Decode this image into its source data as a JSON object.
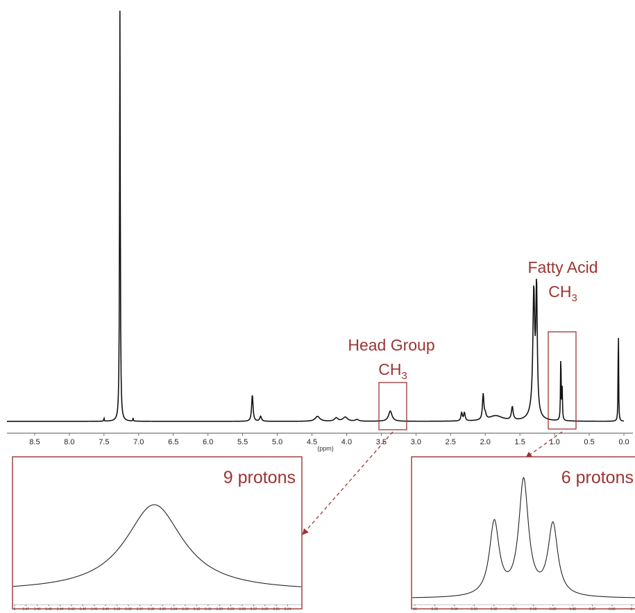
{
  "colors": {
    "spectrum": "#111111",
    "annotation": "#9b3432",
    "axis": "#555555"
  },
  "annotations": {
    "head_group_line1": "Head Group",
    "head_group_line2": "CH",
    "head_group_sub": "3",
    "fatty_acid_line1": "Fatty Acid",
    "fatty_acid_line2": "CH",
    "fatty_acid_sub": "3",
    "inset_left_label": "9 protons",
    "inset_right_label": "6 protons"
  },
  "chart_data": [
    {
      "type": "line",
      "xlabel": "(ppm)",
      "ylabel": "",
      "xlim": [
        8.9,
        0.0
      ],
      "x_reversed": true,
      "ticks": [
        "8.5",
        "8.0",
        "7.5",
        "7.0",
        "6.5",
        "6.0",
        "5.5",
        "5.0",
        "4.5",
        "4.0",
        "3.5",
        "3.0",
        "2.5",
        "2.0",
        "1.5",
        "1.0",
        "0.5",
        "0.0"
      ],
      "peaks": [
        {
          "ppm": 7.5,
          "height": 0.008,
          "width": 0.004
        },
        {
          "ppm": 7.27,
          "height": 1.0,
          "width": 0.006
        },
        {
          "ppm": 7.08,
          "height": 0.008,
          "width": 0.004
        },
        {
          "ppm": 5.36,
          "height": 0.065,
          "width": 0.012
        },
        {
          "ppm": 5.24,
          "height": 0.012,
          "width": 0.015
        },
        {
          "ppm": 4.42,
          "height": 0.012,
          "width": 0.04
        },
        {
          "ppm": 4.15,
          "height": 0.008,
          "width": 0.03
        },
        {
          "ppm": 4.02,
          "height": 0.01,
          "width": 0.04
        },
        {
          "ppm": 3.85,
          "height": 0.004,
          "width": 0.03
        },
        {
          "ppm": 3.37,
          "height": 0.025,
          "width": 0.03
        },
        {
          "ppm": 2.34,
          "height": 0.02,
          "width": 0.012
        },
        {
          "ppm": 2.3,
          "height": 0.02,
          "width": 0.012
        },
        {
          "ppm": 2.03,
          "height": 0.062,
          "width": 0.012
        },
        {
          "ppm": 2.0,
          "height": 0.012,
          "width": 0.015
        },
        {
          "ppm": 1.85,
          "height": 0.013,
          "width": 0.12
        },
        {
          "ppm": 1.61,
          "height": 0.032,
          "width": 0.015
        },
        {
          "ppm": 1.3,
          "height": 0.28,
          "width": 0.015
        },
        {
          "ppm": 1.26,
          "height": 0.3,
          "width": 0.012
        },
        {
          "ppm": 1.3,
          "height": 0.03,
          "width": 0.06
        },
        {
          "ppm": 0.91,
          "height": 0.17,
          "width": 0.005
        },
        {
          "ppm": 0.89,
          "height": 0.075,
          "width": 0.005
        },
        {
          "ppm": 0.08,
          "height": 0.26,
          "width": 0.004
        }
      ]
    },
    {
      "type": "line",
      "title": "9 protons",
      "xlim": [
        3.48,
        3.235
      ],
      "x_reversed": true,
      "ticks": [
        "0",
        "3.47",
        "3.46",
        "3.45",
        "3.44",
        "3.43",
        "3.42",
        "3.41",
        "3.40",
        "3.39",
        "3.38",
        "3.37",
        "3.36",
        "3.35",
        "3.34",
        "3.33",
        "3.32",
        "3.31",
        "3.30",
        "3.29",
        "3.28",
        "3.27",
        "3.26",
        "3.25",
        "3.24"
      ],
      "peaks": [
        {
          "ppm": 3.36,
          "height": 1.0,
          "width": 0.03
        }
      ]
    },
    {
      "type": "line",
      "title": "6 protons",
      "xlim": [
        0.962,
        0.848
      ],
      "x_reversed": true,
      "ticks": [
        "96",
        "0.95",
        "0.94",
        "0.93",
        "0.92",
        "0.91",
        "0.90",
        "0.89",
        "0.88",
        "0.87",
        "0.86",
        "0."
      ],
      "peaks": [
        {
          "ppm": 0.92,
          "height": 0.64,
          "width": 0.003
        },
        {
          "ppm": 0.905,
          "height": 1.0,
          "width": 0.003
        },
        {
          "ppm": 0.89,
          "height": 0.62,
          "width": 0.003
        }
      ]
    }
  ]
}
